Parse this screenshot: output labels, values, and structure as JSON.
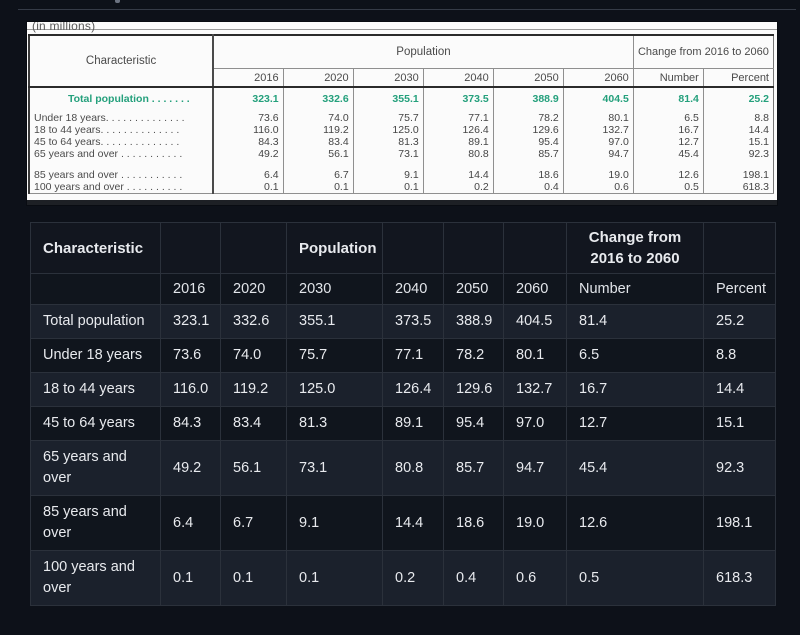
{
  "accent_green": "#24a07c",
  "source_table": {
    "subtitle": "(in millions)",
    "header": {
      "characteristic": "Characteristic",
      "population": "Population",
      "change": "Change from 2016 to 2060",
      "number": "Number",
      "percent": "Percent"
    },
    "years": [
      "2016",
      "2020",
      "2030",
      "2040",
      "2050",
      "2060"
    ],
    "rows": [
      {
        "label": "Total population . . . . . . .",
        "values": [
          "323.1",
          "332.6",
          "355.1",
          "373.5",
          "388.9",
          "404.5",
          "81.4",
          "25.2"
        ]
      },
      {
        "label": "Under 18 years. . . . . . . . . . . . . .",
        "values": [
          "73.6",
          "74.0",
          "75.7",
          "77.1",
          "78.2",
          "80.1",
          "6.5",
          "8.8"
        ]
      },
      {
        "label": "18 to 44 years. . . . . . . . . . . . . .",
        "values": [
          "116.0",
          "119.2",
          "125.0",
          "126.4",
          "129.6",
          "132.7",
          "16.7",
          "14.4"
        ]
      },
      {
        "label": "45 to 64 years. . . . . . . . . . . . . .",
        "values": [
          "84.3",
          "83.4",
          "81.3",
          "89.1",
          "95.4",
          "97.0",
          "12.7",
          "15.1"
        ]
      },
      {
        "label": "65 years and over . . . . . . . . . . .",
        "values": [
          "49.2",
          "56.1",
          "73.1",
          "80.8",
          "85.7",
          "94.7",
          "45.4",
          "92.3"
        ]
      },
      {
        "label": "85 years and over . . . . . . . . . . .",
        "values": [
          "6.4",
          "6.7",
          "9.1",
          "14.4",
          "18.6",
          "19.0",
          "12.6",
          "198.1"
        ]
      },
      {
        "label": "100 years and over . . . . . . . . . .",
        "values": [
          "0.1",
          "0.1",
          "0.1",
          "0.2",
          "0.4",
          "0.6",
          "0.5",
          "618.3"
        ]
      }
    ]
  },
  "dark_table": {
    "header": {
      "characteristic": "Characteristic",
      "population": "Population",
      "change": "Change from 2016 to 2060",
      "number": "Number",
      "percent": "Percent"
    },
    "years": [
      "2016",
      "2020",
      "2030",
      "2040",
      "2050",
      "2060"
    ],
    "rows": [
      {
        "label": "Total population",
        "values": [
          "323.1",
          "332.6",
          "355.1",
          "373.5",
          "388.9",
          "404.5",
          "81.4",
          "25.2"
        ]
      },
      {
        "label": "Under 18 years",
        "values": [
          "73.6",
          "74.0",
          "75.7",
          "77.1",
          "78.2",
          "80.1",
          "6.5",
          "8.8"
        ]
      },
      {
        "label": "18 to 44 years",
        "values": [
          "116.0",
          "119.2",
          "125.0",
          "126.4",
          "129.6",
          "132.7",
          "16.7",
          "14.4"
        ]
      },
      {
        "label": "45 to 64 years",
        "values": [
          "84.3",
          "83.4",
          "81.3",
          "89.1",
          "95.4",
          "97.0",
          "12.7",
          "15.1"
        ]
      },
      {
        "label": "65 years and over",
        "values": [
          "49.2",
          "56.1",
          "73.1",
          "80.8",
          "85.7",
          "94.7",
          "45.4",
          "92.3"
        ]
      },
      {
        "label": "85 years and over",
        "values": [
          "6.4",
          "6.7",
          "9.1",
          "14.4",
          "18.6",
          "19.0",
          "12.6",
          "198.1"
        ]
      },
      {
        "label": "100 years and over",
        "values": [
          "0.1",
          "0.1",
          "0.1",
          "0.2",
          "0.4",
          "0.6",
          "0.5",
          "618.3"
        ]
      }
    ]
  }
}
